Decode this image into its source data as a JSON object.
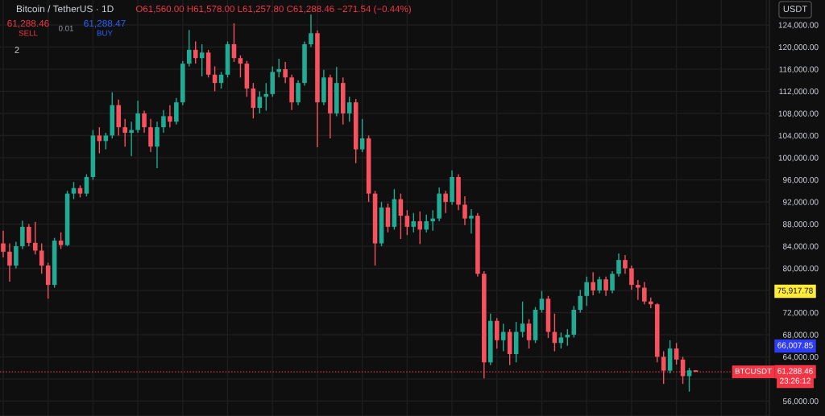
{
  "chart_data": {
    "type": "candlestick",
    "title": "Bitcoin / TetherUS · 1D",
    "subtitle": "O61,560.00 H61,578.00 L61,257.80 C61,288.46 −271.54 (−0.44%)",
    "categories": [
      null,
      null,
      null,
      null,
      null,
      null,
      null,
      null,
      null,
      null,
      null,
      null,
      null,
      null,
      null,
      null,
      null,
      null,
      null,
      null,
      null,
      null,
      null,
      null,
      null,
      null,
      null,
      null,
      null,
      null,
      null,
      null,
      null,
      null,
      null,
      null,
      null,
      null,
      null,
      null,
      null,
      null,
      null,
      null,
      null,
      null,
      null,
      null,
      null,
      null,
      null,
      null,
      null,
      null,
      null,
      null,
      null,
      null,
      null,
      null,
      null,
      null,
      null,
      null,
      null,
      null,
      null,
      null,
      null,
      null,
      null,
      null,
      null,
      null,
      null,
      null,
      null,
      null,
      null,
      null,
      null,
      null,
      null,
      null,
      null,
      null,
      null,
      null,
      null,
      null,
      null,
      null,
      null,
      null,
      null,
      null,
      null,
      null,
      null,
      null,
      null,
      null,
      null,
      null,
      null,
      null,
      null,
      null,
      null,
      null,
      null,
      null,
      null,
      null,
      null,
      null,
      null,
      null,
      null,
      null
    ],
    "ohlc": [
      [
        84500,
        86800,
        82000,
        83000
      ],
      [
        83000,
        84500,
        77600,
        80500
      ],
      [
        80500,
        84800,
        80000,
        84000
      ],
      [
        84000,
        88600,
        83500,
        87500
      ],
      [
        87500,
        88000,
        84000,
        84600
      ],
      [
        84600,
        88400,
        82500,
        83200
      ],
      [
        83200,
        84500,
        79000,
        80500
      ],
      [
        80500,
        81000,
        74500,
        77000
      ],
      [
        77000,
        85500,
        76500,
        85000
      ],
      [
        85000,
        86500,
        83500,
        84200
      ],
      [
        84200,
        94000,
        84000,
        93500
      ],
      [
        93500,
        95600,
        92500,
        94500
      ],
      [
        94500,
        95000,
        92800,
        93500
      ],
      [
        93500,
        97000,
        93000,
        96500
      ],
      [
        96500,
        105000,
        96000,
        104000
      ],
      [
        104000,
        105500,
        100800,
        103000
      ],
      [
        103000,
        104500,
        101500,
        104000
      ],
      [
        104000,
        111800,
        103500,
        109500
      ],
      [
        109500,
        110500,
        104000,
        105500
      ],
      [
        105500,
        107000,
        102000,
        104500
      ],
      [
        104500,
        106500,
        100300,
        105000
      ],
      [
        105000,
        110300,
        104500,
        108000
      ],
      [
        108000,
        108500,
        104500,
        105500
      ],
      [
        105500,
        107000,
        101000,
        102000
      ],
      [
        102000,
        106500,
        98100,
        105500
      ],
      [
        105500,
        108600,
        104500,
        107500
      ],
      [
        107500,
        109500,
        105500,
        106500
      ],
      [
        106500,
        110800,
        106000,
        110000
      ],
      [
        110000,
        117500,
        109500,
        117000
      ],
      [
        117000,
        123100,
        116500,
        119500
      ],
      [
        119500,
        121000,
        117000,
        118000
      ],
      [
        118000,
        120500,
        114700,
        119000
      ],
      [
        119000,
        119500,
        114500,
        115000
      ],
      [
        115000,
        116500,
        112000,
        113500
      ],
      [
        113500,
        115500,
        112500,
        115000
      ],
      [
        115000,
        121000,
        114500,
        120500
      ],
      [
        120500,
        124300,
        117300,
        118000
      ],
      [
        118000,
        118500,
        114500,
        117000
      ],
      [
        117000,
        117500,
        111000,
        112500
      ],
      [
        112500,
        113500,
        107100,
        109000
      ],
      [
        109000,
        112000,
        108000,
        111000
      ],
      [
        111000,
        113500,
        108500,
        111500
      ],
      [
        111500,
        116500,
        111000,
        115500
      ],
      [
        115500,
        117900,
        114500,
        116000
      ],
      [
        116000,
        117300,
        113500,
        114500
      ],
      [
        114500,
        115000,
        108600,
        110000
      ],
      [
        110000,
        114000,
        109500,
        113500
      ],
      [
        113500,
        121000,
        113000,
        120500
      ],
      [
        120500,
        125900,
        120000,
        122500
      ],
      [
        122500,
        123000,
        101900,
        110000
      ],
      [
        110000,
        115900,
        109500,
        114500
      ],
      [
        114500,
        115000,
        103500,
        108000
      ],
      [
        108000,
        116400,
        107500,
        113500
      ],
      [
        113500,
        114500,
        106000,
        108000
      ],
      [
        108000,
        111000,
        106500,
        110000
      ],
      [
        110000,
        110600,
        99000,
        101500
      ],
      [
        101500,
        107000,
        101000,
        103500
      ],
      [
        103500,
        104000,
        92000,
        93500
      ],
      [
        93500,
        94000,
        80500,
        84500
      ],
      [
        84500,
        92000,
        84000,
        91000
      ],
      [
        91000,
        91700,
        86500,
        87500
      ],
      [
        87500,
        94300,
        87000,
        92500
      ],
      [
        92500,
        93500,
        85300,
        89500
      ],
      [
        89500,
        90500,
        86000,
        87500
      ],
      [
        87500,
        90000,
        86500,
        88500
      ],
      [
        88500,
        90300,
        84400,
        87000
      ],
      [
        87000,
        89700,
        86500,
        88500
      ],
      [
        88500,
        90500,
        86800,
        89000
      ],
      [
        89000,
        94600,
        88500,
        93500
      ],
      [
        93500,
        94000,
        90000,
        92000
      ],
      [
        92000,
        97700,
        91500,
        96500
      ],
      [
        96500,
        97000,
        90500,
        91500
      ],
      [
        91500,
        93000,
        87800,
        89000
      ],
      [
        89000,
        90700,
        86300,
        89500
      ],
      [
        89500,
        90000,
        78500,
        79000
      ],
      [
        79000,
        79500,
        60100,
        63000
      ],
      [
        63000,
        71800,
        62500,
        70500
      ],
      [
        70500,
        71000,
        65500,
        67000
      ],
      [
        67000,
        70000,
        65000,
        68500
      ],
      [
        68500,
        69000,
        62500,
        64500
      ],
      [
        64500,
        70300,
        63000,
        68500
      ],
      [
        68500,
        74000,
        67500,
        70000
      ],
      [
        70000,
        70800,
        65500,
        67000
      ],
      [
        67000,
        73000,
        66500,
        72500
      ],
      [
        72500,
        75900,
        72000,
        74500
      ],
      [
        74500,
        75000,
        67400,
        68500
      ],
      [
        68500,
        71800,
        65000,
        66500
      ],
      [
        66500,
        68400,
        65500,
        67500
      ],
      [
        67500,
        69000,
        66000,
        68000
      ],
      [
        68000,
        73200,
        67500,
        72500
      ],
      [
        72500,
        76100,
        72000,
        75000
      ],
      [
        75000,
        78500,
        73200,
        77500
      ],
      [
        77500,
        79300,
        75100,
        76000
      ],
      [
        76000,
        78500,
        75500,
        78000
      ],
      [
        78000,
        78500,
        75000,
        76000
      ],
      [
        76000,
        79500,
        75500,
        79000
      ],
      [
        79000,
        82700,
        78500,
        81500
      ],
      [
        81500,
        82400,
        79000,
        80000
      ],
      [
        80000,
        80500,
        76100,
        77000
      ],
      [
        77000,
        77900,
        74300,
        76500
      ],
      [
        76500,
        77500,
        73500,
        74000
      ],
      [
        74000,
        74700,
        72800,
        73500
      ],
      [
        73500,
        73700,
        63000,
        64000
      ],
      [
        64000,
        65000,
        59100,
        61500
      ],
      [
        61500,
        67000,
        61000,
        65500
      ],
      [
        65500,
        66500,
        62600,
        63500
      ],
      [
        63500,
        64000,
        59100,
        60500
      ],
      [
        60500,
        62000,
        57700,
        61560
      ],
      [
        61560,
        61578,
        61257.8,
        61288.46
      ],
      null,
      null,
      null,
      null,
      null,
      null,
      null,
      null,
      null,
      null,
      null
    ],
    "colors": [
      "#f7525f",
      "#f7525f",
      "#22ab94",
      "#22ab94",
      "#f7525f",
      "#f7525f",
      "#f7525f",
      "#f7525f",
      "#22ab94",
      "#f7525f",
      "#22ab94",
      "#22ab94",
      "#f7525f",
      "#22ab94",
      "#22ab94",
      "#f7525f",
      "#22ab94",
      "#22ab94",
      "#f7525f",
      "#f7525f",
      "#22ab94",
      "#22ab94",
      "#f7525f",
      "#f7525f",
      "#22ab94",
      "#22ab94",
      "#f7525f",
      "#22ab94",
      "#22ab94",
      "#22ab94",
      "#f7525f",
      "#22ab94",
      "#f7525f",
      "#f7525f",
      "#22ab94",
      "#22ab94",
      "#f7525f",
      "#f7525f",
      "#f7525f",
      "#f7525f",
      "#22ab94",
      "#22ab94",
      "#22ab94",
      "#22ab94",
      "#f7525f",
      "#f7525f",
      "#22ab94",
      "#22ab94",
      "#22ab94",
      "#f7525f",
      "#22ab94",
      "#f7525f",
      "#22ab94",
      "#f7525f",
      "#22ab94",
      "#f7525f",
      "#22ab94",
      "#f7525f",
      "#f7525f",
      "#22ab94",
      "#f7525f",
      "#22ab94",
      "#f7525f",
      "#f7525f",
      "#22ab94",
      "#f7525f",
      "#22ab94",
      "#22ab94",
      "#22ab94",
      "#f7525f",
      "#22ab94",
      "#f7525f",
      "#f7525f",
      "#22ab94",
      "#f7525f",
      "#f7525f",
      "#22ab94",
      "#f7525f",
      "#22ab94",
      "#f7525f",
      "#22ab94",
      "#22ab94",
      "#f7525f",
      "#22ab94",
      "#22ab94",
      "#f7525f",
      "#f7525f",
      "#22ab94",
      "#22ab94",
      "#22ab94",
      "#22ab94",
      "#22ab94",
      "#f7525f",
      "#22ab94",
      "#f7525f",
      "#22ab94",
      "#22ab94",
      "#f7525f",
      "#f7525f",
      "#f7525f",
      "#f7525f",
      "#f7525f",
      "#f7525f",
      "#f7525f",
      "#22ab94",
      "#f7525f",
      "#f7525f",
      "#22ab94",
      "#f7525f",
      null,
      null,
      null,
      null,
      null,
      null,
      null,
      null,
      null,
      null,
      null
    ],
    "ylim": [
      53300,
      128500
    ],
    "yticks": [
      {
        "value": 56000,
        "label": "56,000.00"
      },
      {
        "value": 60000,
        "label": null
      },
      {
        "value": 64000,
        "label": "64,000.00"
      },
      {
        "value": 68000,
        "label": "68,000.00"
      },
      {
        "value": 72000,
        "label": "72,000.00"
      },
      {
        "value": 76000,
        "label": null
      },
      {
        "value": 80000,
        "label": "80,000.00"
      },
      {
        "value": 84000,
        "label": "84,000.00"
      },
      {
        "value": 88000,
        "label": "88,000.00"
      },
      {
        "value": 92000,
        "label": "92,000.00"
      },
      {
        "value": 96000,
        "label": "96,000.00"
      },
      {
        "value": 100000,
        "label": "100,000.00"
      },
      {
        "value": 104000,
        "label": "104,000.00"
      },
      {
        "value": 108000,
        "label": "108,000.00"
      },
      {
        "value": 112000,
        "label": "112,000.00"
      },
      {
        "value": 116000,
        "label": "116,000.00"
      },
      {
        "value": 120000,
        "label": "120,000.00"
      },
      {
        "value": 124000,
        "label": "124,000.00"
      }
    ],
    "grid": true,
    "tick_labels": "y",
    "ref_lines": [
      {
        "axis": "y",
        "value": 61288.46,
        "label": "BTCUSDT",
        "color": "#f23645",
        "line_style": "dotted"
      }
    ],
    "annotations": [
      "61,288.46",
      "SELL",
      "0.01",
      "61,288.47",
      "BUY",
      "2",
      "USDT",
      "75,917.78",
      "66,007.85",
      "61,288.46",
      "23:26:12"
    ]
  }
}
